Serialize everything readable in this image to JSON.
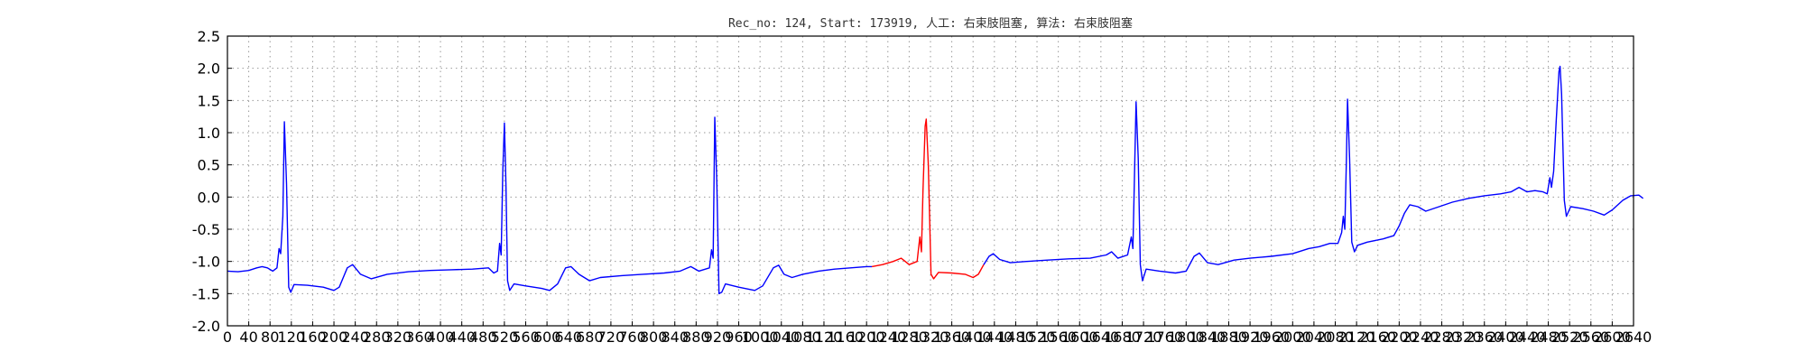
{
  "chart_data": {
    "type": "line",
    "title": "Rec_no: 124, Start: 173919, 人工: 右束肢阻塞, 算法: 右束肢阻塞",
    "xlabel": "",
    "ylabel": "",
    "xlim": [
      0,
      2640
    ],
    "ylim": [
      -2.0,
      2.5
    ],
    "grid": true,
    "colors": {
      "normal": "#0000ff",
      "highlight": "#ff0000"
    },
    "highlight_range": [
      1210,
      1420
    ],
    "x_ticks": [
      0,
      40,
      80,
      120,
      160,
      200,
      240,
      280,
      320,
      360,
      400,
      440,
      480,
      520,
      560,
      600,
      640,
      680,
      720,
      760,
      800,
      840,
      880,
      920,
      960,
      1000,
      1040,
      1080,
      1120,
      1160,
      1200,
      1240,
      1280,
      1320,
      1360,
      1400,
      1440,
      1480,
      1520,
      1560,
      1600,
      1640,
      1680,
      1720,
      1760,
      1800,
      1840,
      1880,
      1920,
      1960,
      2000,
      2040,
      2080,
      2120,
      2160,
      2200,
      2240,
      2280,
      2320,
      2360,
      2400,
      2440,
      2480,
      2520,
      2560,
      2600,
      2640
    ],
    "y_ticks": [
      -2.0,
      -1.5,
      -1.0,
      -0.5,
      0.0,
      0.5,
      1.0,
      1.5,
      2.0,
      2.5
    ],
    "beats": [
      {
        "x": 107,
        "peak": 1.17
      },
      {
        "x": 518,
        "peak": 1.15
      },
      {
        "x": 915,
        "peak": 1.24
      },
      {
        "x": 1312,
        "peak": 1.21
      },
      {
        "x": 1706,
        "peak": 1.48
      },
      {
        "x": 2103,
        "peak": 1.52
      },
      {
        "x": 2502,
        "peak": 2.03
      }
    ],
    "series": [
      {
        "values": [
          [
            0,
            -1.15
          ],
          [
            20,
            -1.16
          ],
          [
            40,
            -1.14
          ],
          [
            55,
            -1.1
          ],
          [
            65,
            -1.08
          ],
          [
            75,
            -1.1
          ],
          [
            85,
            -1.15
          ],
          [
            93,
            -1.1
          ],
          [
            97,
            -0.8
          ],
          [
            100,
            -0.88
          ],
          [
            104,
            -0.3
          ],
          [
            107,
            1.17
          ],
          [
            111,
            0.2
          ],
          [
            115,
            -1.4
          ],
          [
            119,
            -1.48
          ],
          [
            125,
            -1.36
          ],
          [
            150,
            -1.37
          ],
          [
            180,
            -1.4
          ],
          [
            200,
            -1.45
          ],
          [
            210,
            -1.4
          ],
          [
            225,
            -1.1
          ],
          [
            235,
            -1.05
          ],
          [
            250,
            -1.2
          ],
          [
            270,
            -1.27
          ],
          [
            300,
            -1.2
          ],
          [
            340,
            -1.16
          ],
          [
            380,
            -1.14
          ],
          [
            420,
            -1.13
          ],
          [
            460,
            -1.12
          ],
          [
            490,
            -1.1
          ],
          [
            500,
            -1.18
          ],
          [
            507,
            -1.15
          ],
          [
            511,
            -0.72
          ],
          [
            514,
            -0.9
          ],
          [
            517,
            0.4
          ],
          [
            520,
            1.15
          ],
          [
            523,
            0.2
          ],
          [
            526,
            -1.3
          ],
          [
            530,
            -1.45
          ],
          [
            538,
            -1.35
          ],
          [
            560,
            -1.38
          ],
          [
            590,
            -1.42
          ],
          [
            605,
            -1.45
          ],
          [
            620,
            -1.35
          ],
          [
            635,
            -1.1
          ],
          [
            645,
            -1.08
          ],
          [
            660,
            -1.2
          ],
          [
            680,
            -1.3
          ],
          [
            700,
            -1.25
          ],
          [
            740,
            -1.22
          ],
          [
            780,
            -1.2
          ],
          [
            820,
            -1.18
          ],
          [
            850,
            -1.15
          ],
          [
            870,
            -1.08
          ],
          [
            885,
            -1.15
          ],
          [
            905,
            -1.1
          ],
          [
            909,
            -0.82
          ],
          [
            912,
            -0.95
          ],
          [
            915,
            1.24
          ],
          [
            919,
            0.2
          ],
          [
            923,
            -1.5
          ],
          [
            928,
            -1.48
          ],
          [
            935,
            -1.35
          ],
          [
            960,
            -1.4
          ],
          [
            990,
            -1.45
          ],
          [
            1005,
            -1.38
          ],
          [
            1025,
            -1.1
          ],
          [
            1035,
            -1.06
          ],
          [
            1045,
            -1.2
          ],
          [
            1060,
            -1.25
          ],
          [
            1080,
            -1.2
          ],
          [
            1110,
            -1.15
          ],
          [
            1140,
            -1.12
          ],
          [
            1170,
            -1.1
          ],
          [
            1200,
            -1.08
          ],
          [
            1210,
            -1.08
          ]
        ]
      },
      {
        "values": [
          [
            1210,
            -1.08
          ],
          [
            1230,
            -1.05
          ],
          [
            1250,
            -1.0
          ],
          [
            1265,
            -0.95
          ],
          [
            1280,
            -1.05
          ],
          [
            1295,
            -1.0
          ],
          [
            1300,
            -0.62
          ],
          [
            1303,
            -0.85
          ],
          [
            1306,
            0.1
          ],
          [
            1310,
            1.1
          ],
          [
            1312,
            1.21
          ],
          [
            1316,
            0.5
          ],
          [
            1321,
            -1.2
          ],
          [
            1326,
            -1.27
          ],
          [
            1335,
            -1.17
          ],
          [
            1360,
            -1.18
          ],
          [
            1385,
            -1.2
          ],
          [
            1400,
            -1.25
          ],
          [
            1410,
            -1.2
          ],
          [
            1420,
            -1.05
          ]
        ]
      },
      {
        "values": [
          [
            1420,
            -1.05
          ],
          [
            1430,
            -0.92
          ],
          [
            1438,
            -0.88
          ],
          [
            1450,
            -0.97
          ],
          [
            1470,
            -1.02
          ],
          [
            1500,
            -1.0
          ],
          [
            1540,
            -0.98
          ],
          [
            1580,
            -0.96
          ],
          [
            1620,
            -0.95
          ],
          [
            1650,
            -0.9
          ],
          [
            1660,
            -0.85
          ],
          [
            1672,
            -0.95
          ],
          [
            1690,
            -0.9
          ],
          [
            1697,
            -0.62
          ],
          [
            1700,
            -0.8
          ],
          [
            1703,
            0.3
          ],
          [
            1706,
            1.48
          ],
          [
            1710,
            0.6
          ],
          [
            1714,
            -1.05
          ],
          [
            1718,
            -1.3
          ],
          [
            1725,
            -1.12
          ],
          [
            1750,
            -1.15
          ],
          [
            1780,
            -1.18
          ],
          [
            1800,
            -1.15
          ],
          [
            1815,
            -0.92
          ],
          [
            1825,
            -0.87
          ],
          [
            1840,
            -1.02
          ],
          [
            1860,
            -1.05
          ],
          [
            1890,
            -0.98
          ],
          [
            1920,
            -0.95
          ],
          [
            1960,
            -0.92
          ],
          [
            2000,
            -0.88
          ],
          [
            2030,
            -0.8
          ],
          [
            2050,
            -0.77
          ],
          [
            2070,
            -0.72
          ],
          [
            2085,
            -0.72
          ],
          [
            2092,
            -0.55
          ],
          [
            2095,
            -0.3
          ],
          [
            2098,
            -0.5
          ],
          [
            2101,
            0.6
          ],
          [
            2103,
            1.52
          ],
          [
            2107,
            0.6
          ],
          [
            2111,
            -0.7
          ],
          [
            2116,
            -0.85
          ],
          [
            2122,
            -0.75
          ],
          [
            2140,
            -0.7
          ],
          [
            2170,
            -0.65
          ],
          [
            2190,
            -0.6
          ],
          [
            2200,
            -0.45
          ],
          [
            2210,
            -0.25
          ],
          [
            2220,
            -0.12
          ],
          [
            2235,
            -0.15
          ],
          [
            2250,
            -0.22
          ],
          [
            2275,
            -0.15
          ],
          [
            2300,
            -0.08
          ],
          [
            2330,
            -0.02
          ],
          [
            2360,
            0.02
          ],
          [
            2390,
            0.05
          ],
          [
            2410,
            0.08
          ],
          [
            2425,
            0.15
          ],
          [
            2440,
            0.08
          ],
          [
            2455,
            0.1
          ],
          [
            2470,
            0.08
          ],
          [
            2478,
            0.05
          ],
          [
            2483,
            0.3
          ],
          [
            2486,
            0.15
          ],
          [
            2490,
            0.4
          ],
          [
            2495,
            1.2
          ],
          [
            2500,
            1.95
          ],
          [
            2502,
            2.03
          ],
          [
            2505,
            1.6
          ],
          [
            2510,
            -0.05
          ],
          [
            2514,
            -0.3
          ],
          [
            2522,
            -0.15
          ],
          [
            2545,
            -0.18
          ],
          [
            2565,
            -0.22
          ],
          [
            2585,
            -0.28
          ],
          [
            2600,
            -0.2
          ],
          [
            2620,
            -0.05
          ],
          [
            2635,
            0.02
          ],
          [
            2650,
            0.03
          ],
          [
            2658,
            -0.02
          ]
        ]
      }
    ]
  }
}
